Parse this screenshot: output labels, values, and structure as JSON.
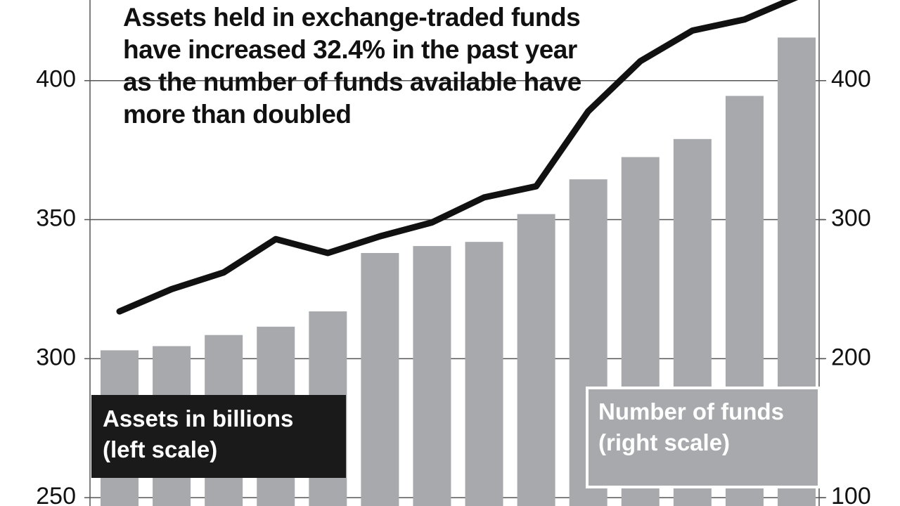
{
  "chart_data": {
    "type": "bar-line",
    "title": "Assets held in exchange-traded funds have increased 32.4% in the past year as the number of funds available have more than doubled",
    "categories": [
      null,
      null,
      null,
      null,
      null,
      null,
      null,
      null,
      null,
      null,
      null,
      null,
      null,
      null
    ],
    "series": [
      {
        "name": "Assets in billions (left scale)",
        "type": "line",
        "color": "#111111",
        "values": [
          317,
          325,
          331,
          343,
          338,
          344,
          349,
          358,
          362,
          389,
          407,
          418,
          422,
          430
        ]
      },
      {
        "name": "Number of funds (right scale)",
        "type": "bar",
        "axis": "y2",
        "color": "#a7a9ac",
        "values": [
          206,
          209,
          217,
          223,
          234,
          276,
          281,
          284,
          304,
          329,
          345,
          358,
          389,
          431
        ]
      }
    ],
    "ylim": [
      247,
      429
    ],
    "yticks": [
      250,
      300,
      350,
      400
    ],
    "y2lim": [
      94,
      458
    ],
    "y2ticks": [
      100,
      200,
      300,
      400
    ],
    "grid": true
  }
}
